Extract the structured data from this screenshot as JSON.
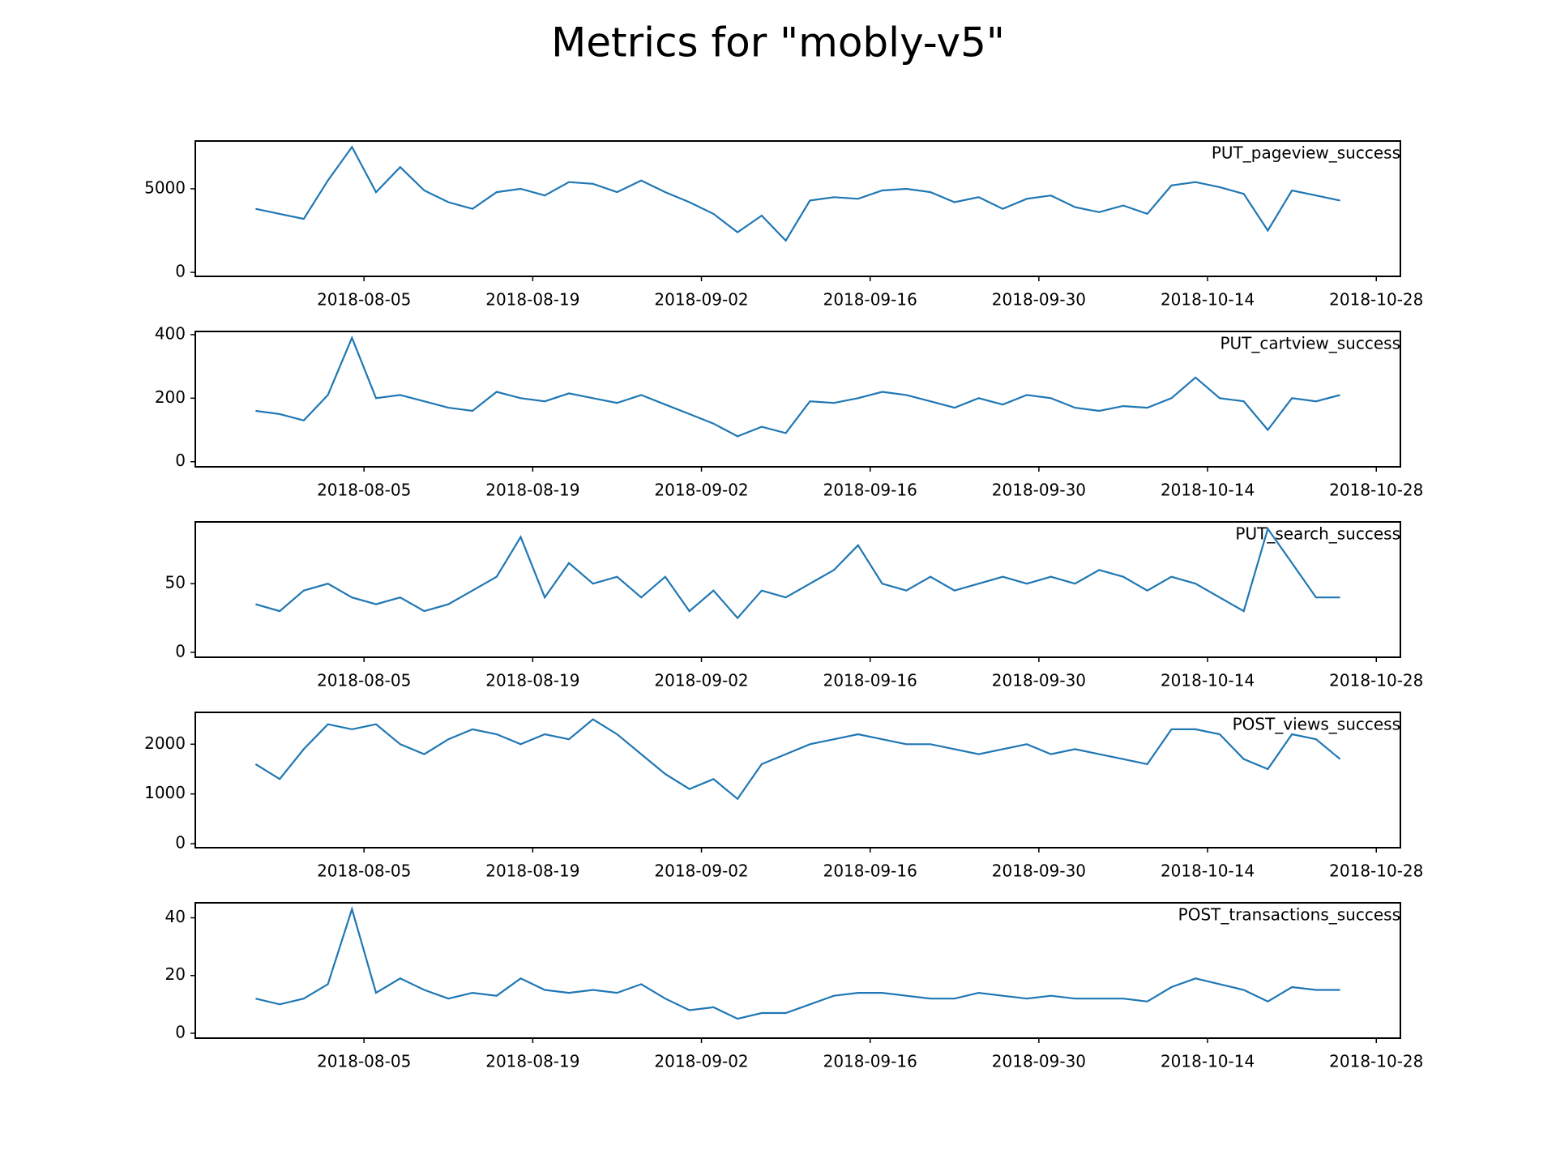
{
  "title": "Metrics for \"mobly-v5\"",
  "chart_data": [
    {
      "type": "line",
      "title": "PUT_pageview_success",
      "color": "#1f77b4",
      "x": [
        "2018-07-27",
        "2018-07-29",
        "2018-07-31",
        "2018-08-02",
        "2018-08-04",
        "2018-08-06",
        "2018-08-08",
        "2018-08-10",
        "2018-08-12",
        "2018-08-14",
        "2018-08-16",
        "2018-08-18",
        "2018-08-20",
        "2018-08-22",
        "2018-08-24",
        "2018-08-26",
        "2018-08-28",
        "2018-08-30",
        "2018-09-01",
        "2018-09-03",
        "2018-09-05",
        "2018-09-07",
        "2018-09-09",
        "2018-09-11",
        "2018-09-13",
        "2018-09-15",
        "2018-09-17",
        "2018-09-19",
        "2018-09-21",
        "2018-09-23",
        "2018-09-25",
        "2018-09-27",
        "2018-09-29",
        "2018-10-01",
        "2018-10-03",
        "2018-10-05",
        "2018-10-07",
        "2018-10-09",
        "2018-10-11",
        "2018-10-13",
        "2018-10-15",
        "2018-10-17",
        "2018-10-19",
        "2018-10-21",
        "2018-10-23",
        "2018-10-25"
      ],
      "values": [
        3800,
        3500,
        3200,
        5500,
        7500,
        4800,
        6300,
        4900,
        4200,
        3800,
        4800,
        5000,
        4600,
        5400,
        5300,
        4800,
        5500,
        4800,
        4200,
        3500,
        2400,
        3400,
        1900,
        4300,
        4500,
        4400,
        4900,
        5000,
        4800,
        4200,
        4500,
        3800,
        4400,
        4600,
        3900,
        3600,
        4000,
        3500,
        5200,
        5400,
        5100,
        4700,
        2500,
        4900,
        4600,
        4300
      ],
      "xlim": [
        "2018-07-22",
        "2018-10-30"
      ],
      "xticks": [
        "2018-08-05",
        "2018-08-19",
        "2018-09-02",
        "2018-09-16",
        "2018-09-30",
        "2018-10-14",
        "2018-10-28"
      ],
      "ylim": [
        -240,
        7860
      ],
      "yticks": [
        0,
        5000
      ]
    },
    {
      "type": "line",
      "title": "PUT_cartview_success",
      "color": "#1f77b4",
      "x": [
        "2018-07-27",
        "2018-07-29",
        "2018-07-31",
        "2018-08-02",
        "2018-08-04",
        "2018-08-06",
        "2018-08-08",
        "2018-08-10",
        "2018-08-12",
        "2018-08-14",
        "2018-08-16",
        "2018-08-18",
        "2018-08-20",
        "2018-08-22",
        "2018-08-24",
        "2018-08-26",
        "2018-08-28",
        "2018-08-30",
        "2018-09-01",
        "2018-09-03",
        "2018-09-05",
        "2018-09-07",
        "2018-09-09",
        "2018-09-11",
        "2018-09-13",
        "2018-09-15",
        "2018-09-17",
        "2018-09-19",
        "2018-09-21",
        "2018-09-23",
        "2018-09-25",
        "2018-09-27",
        "2018-09-29",
        "2018-10-01",
        "2018-10-03",
        "2018-10-05",
        "2018-10-07",
        "2018-10-09",
        "2018-10-11",
        "2018-10-13",
        "2018-10-15",
        "2018-10-17",
        "2018-10-19",
        "2018-10-21",
        "2018-10-23",
        "2018-10-25"
      ],
      "values": [
        160,
        150,
        130,
        210,
        390,
        200,
        210,
        190,
        170,
        160,
        220,
        200,
        190,
        215,
        200,
        185,
        210,
        180,
        150,
        120,
        80,
        110,
        90,
        190,
        185,
        200,
        220,
        210,
        190,
        170,
        200,
        180,
        210,
        200,
        170,
        160,
        175,
        170,
        200,
        265,
        200,
        190,
        100,
        200,
        190,
        210
      ],
      "xlim": [
        "2018-07-22",
        "2018-10-30"
      ],
      "xticks": [
        "2018-08-05",
        "2018-08-19",
        "2018-09-02",
        "2018-09-16",
        "2018-09-30",
        "2018-10-14",
        "2018-10-28"
      ],
      "ylim": [
        -16,
        410
      ],
      "yticks": [
        0,
        200,
        400
      ]
    },
    {
      "type": "line",
      "title": "PUT_search_success",
      "color": "#1f77b4",
      "x": [
        "2018-07-27",
        "2018-07-29",
        "2018-07-31",
        "2018-08-02",
        "2018-08-04",
        "2018-08-06",
        "2018-08-08",
        "2018-08-10",
        "2018-08-12",
        "2018-08-14",
        "2018-08-16",
        "2018-08-18",
        "2018-08-20",
        "2018-08-22",
        "2018-08-24",
        "2018-08-26",
        "2018-08-28",
        "2018-08-30",
        "2018-09-01",
        "2018-09-03",
        "2018-09-05",
        "2018-09-07",
        "2018-09-09",
        "2018-09-11",
        "2018-09-13",
        "2018-09-15",
        "2018-09-17",
        "2018-09-19",
        "2018-09-21",
        "2018-09-23",
        "2018-09-25",
        "2018-09-27",
        "2018-09-29",
        "2018-10-01",
        "2018-10-03",
        "2018-10-05",
        "2018-10-07",
        "2018-10-09",
        "2018-10-11",
        "2018-10-13",
        "2018-10-15",
        "2018-10-17",
        "2018-10-19",
        "2018-10-21",
        "2018-10-23",
        "2018-10-25"
      ],
      "values": [
        35,
        30,
        45,
        50,
        40,
        35,
        40,
        30,
        35,
        45,
        55,
        84,
        40,
        65,
        50,
        55,
        40,
        55,
        30,
        45,
        25,
        45,
        40,
        50,
        60,
        78,
        50,
        45,
        55,
        45,
        50,
        55,
        50,
        55,
        50,
        60,
        55,
        45,
        55,
        50,
        40,
        30,
        90,
        65,
        40,
        40
      ],
      "xlim": [
        "2018-07-22",
        "2018-10-30"
      ],
      "xticks": [
        "2018-08-05",
        "2018-08-19",
        "2018-09-02",
        "2018-09-16",
        "2018-09-30",
        "2018-10-14",
        "2018-10-28"
      ],
      "ylim": [
        -3.6,
        95
      ],
      "yticks": [
        0,
        50
      ]
    },
    {
      "type": "line",
      "title": "POST_views_success",
      "color": "#1f77b4",
      "x": [
        "2018-07-27",
        "2018-07-29",
        "2018-07-31",
        "2018-08-02",
        "2018-08-04",
        "2018-08-06",
        "2018-08-08",
        "2018-08-10",
        "2018-08-12",
        "2018-08-14",
        "2018-08-16",
        "2018-08-18",
        "2018-08-20",
        "2018-08-22",
        "2018-08-24",
        "2018-08-26",
        "2018-08-28",
        "2018-08-30",
        "2018-09-01",
        "2018-09-03",
        "2018-09-05",
        "2018-09-07",
        "2018-09-09",
        "2018-09-11",
        "2018-09-13",
        "2018-09-15",
        "2018-09-17",
        "2018-09-19",
        "2018-09-21",
        "2018-09-23",
        "2018-09-25",
        "2018-09-27",
        "2018-09-29",
        "2018-10-01",
        "2018-10-03",
        "2018-10-05",
        "2018-10-07",
        "2018-10-09",
        "2018-10-11",
        "2018-10-13",
        "2018-10-15",
        "2018-10-17",
        "2018-10-19",
        "2018-10-21",
        "2018-10-23",
        "2018-10-25"
      ],
      "values": [
        1600,
        1300,
        1900,
        2400,
        2300,
        2400,
        2000,
        1800,
        2100,
        2300,
        2200,
        2000,
        2200,
        2100,
        2500,
        2200,
        1800,
        1400,
        1100,
        1300,
        900,
        1600,
        1800,
        2000,
        2100,
        2200,
        2100,
        2000,
        2000,
        1900,
        1800,
        1900,
        2000,
        1800,
        1900,
        1800,
        1700,
        1600,
        2300,
        2300,
        2200,
        1700,
        1500,
        2200,
        2100,
        1700
      ],
      "xlim": [
        "2018-07-22",
        "2018-10-30"
      ],
      "xticks": [
        "2018-08-05",
        "2018-08-19",
        "2018-09-02",
        "2018-09-16",
        "2018-09-30",
        "2018-10-14",
        "2018-10-28"
      ],
      "ylim": [
        -80,
        2640
      ],
      "yticks": [
        0,
        1000,
        2000
      ]
    },
    {
      "type": "line",
      "title": "POST_transactions_success",
      "color": "#1f77b4",
      "x": [
        "2018-07-27",
        "2018-07-29",
        "2018-07-31",
        "2018-08-02",
        "2018-08-04",
        "2018-08-06",
        "2018-08-08",
        "2018-08-10",
        "2018-08-12",
        "2018-08-14",
        "2018-08-16",
        "2018-08-18",
        "2018-08-20",
        "2018-08-22",
        "2018-08-24",
        "2018-08-26",
        "2018-08-28",
        "2018-08-30",
        "2018-09-01",
        "2018-09-03",
        "2018-09-05",
        "2018-09-07",
        "2018-09-09",
        "2018-09-11",
        "2018-09-13",
        "2018-09-15",
        "2018-09-17",
        "2018-09-19",
        "2018-09-21",
        "2018-09-23",
        "2018-09-25",
        "2018-09-27",
        "2018-09-29",
        "2018-10-01",
        "2018-10-03",
        "2018-10-05",
        "2018-10-07",
        "2018-10-09",
        "2018-10-11",
        "2018-10-13",
        "2018-10-15",
        "2018-10-17",
        "2018-10-19",
        "2018-10-21",
        "2018-10-23",
        "2018-10-25"
      ],
      "values": [
        12,
        10,
        12,
        17,
        43,
        14,
        19,
        15,
        12,
        14,
        13,
        19,
        15,
        14,
        15,
        14,
        17,
        12,
        8,
        9,
        5,
        7,
        7,
        10,
        13,
        14,
        14,
        13,
        12,
        12,
        14,
        13,
        12,
        13,
        12,
        12,
        12,
        11,
        16,
        19,
        17,
        15,
        11,
        16,
        15,
        15
      ],
      "xlim": [
        "2018-07-22",
        "2018-10-30"
      ],
      "xticks": [
        "2018-08-05",
        "2018-08-19",
        "2018-09-02",
        "2018-09-16",
        "2018-09-30",
        "2018-10-14",
        "2018-10-28"
      ],
      "ylim": [
        -1.7,
        45.2
      ],
      "yticks": [
        0,
        20,
        40
      ]
    }
  ]
}
